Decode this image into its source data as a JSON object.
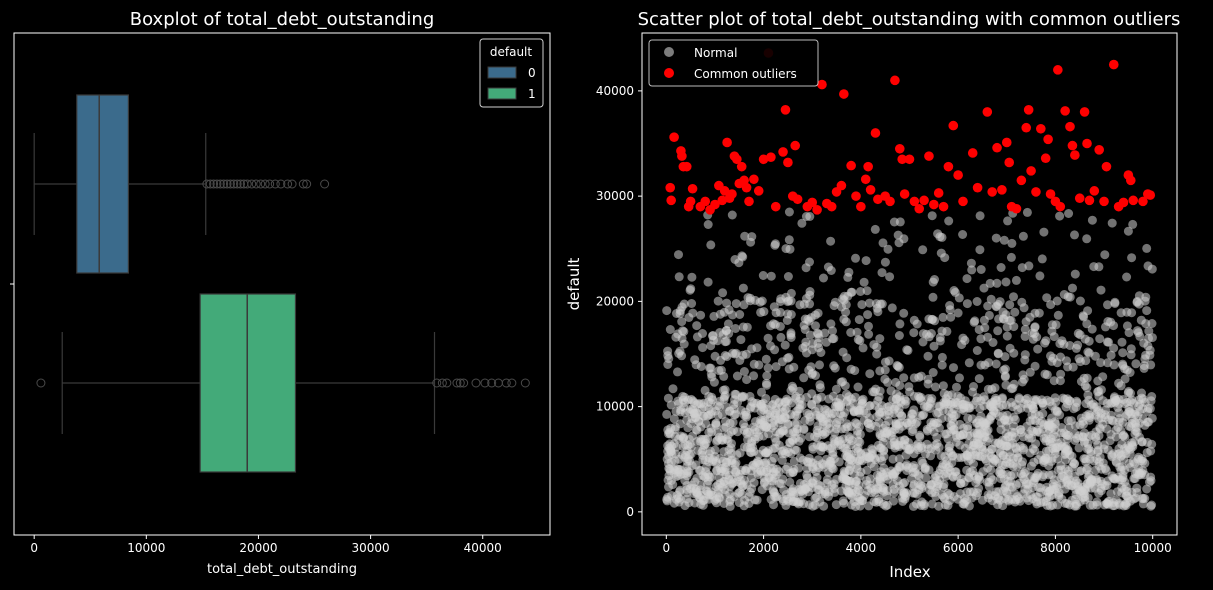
{
  "colors": {
    "background": "#000000",
    "axes": "#ffffff",
    "box0": "#3b6b8c",
    "box1": "#43aa79",
    "normal": "#cfcfcf",
    "outlier": "#ff0000",
    "whisker": "#3a3a3a"
  },
  "chart_data": [
    {
      "type": "boxplot",
      "title": "Boxplot of total_debt_outstanding",
      "xlabel": "total_debt_outstanding",
      "ylabel": "",
      "xlim": [
        -1800,
        46000
      ],
      "xticks": [
        "0",
        "10000",
        "20000",
        "30000",
        "40000"
      ],
      "xtick_values": [
        0,
        10000,
        20000,
        30000,
        40000
      ],
      "legend": {
        "title": "default",
        "position": "top-right",
        "entries": [
          "0",
          "1"
        ]
      },
      "groups": [
        {
          "name": "0",
          "min": 0,
          "q1": 3800,
          "median": 5800,
          "q3": 8400,
          "max": 15300,
          "outliers": [
            15400,
            15700,
            16000,
            16300,
            16600,
            16900,
            17200,
            17500,
            17800,
            18100,
            18400,
            18700,
            19000,
            19400,
            19800,
            20200,
            20600,
            21000,
            21500,
            22000,
            22600,
            23000,
            24000,
            24300,
            25900
          ]
        },
        {
          "name": "1",
          "min": 2500,
          "q1": 14800,
          "median": 19000,
          "q3": 23300,
          "max": 35700,
          "outliers": [
            600,
            35900,
            36400,
            36800,
            37700,
            38000,
            38300,
            39400,
            40200,
            40800,
            41400,
            42100,
            42600,
            43800
          ]
        }
      ]
    },
    {
      "type": "scatter",
      "title": "Scatter plot of total_debt_outstanding with common outliers",
      "xlabel": "Index",
      "ylabel": "default",
      "xlim": [
        -500,
        10500
      ],
      "ylim": [
        -2200,
        45500
      ],
      "xticks": [
        "0",
        "2000",
        "4000",
        "6000",
        "8000",
        "10000"
      ],
      "xtick_values": [
        0,
        2000,
        4000,
        6000,
        8000,
        10000
      ],
      "yticks": [
        "0",
        "10000",
        "20000",
        "30000",
        "40000"
      ],
      "ytick_values": [
        0,
        10000,
        20000,
        30000,
        40000
      ],
      "legend": {
        "position": "top-left",
        "entries": [
          "Normal",
          "Common outliers"
        ]
      },
      "series": [
        {
          "name": "Normal",
          "description_range": {
            "x": [
              0,
              10000
            ],
            "y": [
              0,
              28500
            ]
          }
        },
        {
          "name": "Common outliers",
          "points": [
            [
              80,
              30800
            ],
            [
              100,
              29600
            ],
            [
              160,
              35600
            ],
            [
              300,
              34300
            ],
            [
              320,
              33800
            ],
            [
              350,
              32800
            ],
            [
              420,
              32800
            ],
            [
              460,
              29000
            ],
            [
              500,
              29500
            ],
            [
              540,
              30700
            ],
            [
              700,
              29000
            ],
            [
              800,
              29500
            ],
            [
              900,
              28700
            ],
            [
              1000,
              29200
            ],
            [
              1080,
              31000
            ],
            [
              1150,
              29600
            ],
            [
              1200,
              30500
            ],
            [
              1250,
              35100
            ],
            [
              1300,
              29800
            ],
            [
              1350,
              30200
            ],
            [
              1400,
              33800
            ],
            [
              1450,
              33500
            ],
            [
              1500,
              31200
            ],
            [
              1550,
              32800
            ],
            [
              1600,
              31500
            ],
            [
              1650,
              30800
            ],
            [
              1700,
              29500
            ],
            [
              1800,
              31600
            ],
            [
              1900,
              30500
            ],
            [
              2000,
              33500
            ],
            [
              2100,
              43600
            ],
            [
              2150,
              33700
            ],
            [
              2250,
              29000
            ],
            [
              2400,
              34200
            ],
            [
              2450,
              38200
            ],
            [
              2500,
              33200
            ],
            [
              2600,
              30000
            ],
            [
              2650,
              34800
            ],
            [
              2700,
              29700
            ],
            [
              2900,
              29000
            ],
            [
              3000,
              29400
            ],
            [
              3100,
              28700
            ],
            [
              3200,
              40600
            ],
            [
              3300,
              29300
            ],
            [
              3400,
              29000
            ],
            [
              3500,
              30400
            ],
            [
              3600,
              31000
            ],
            [
              3650,
              39700
            ],
            [
              3800,
              32900
            ],
            [
              3900,
              30000
            ],
            [
              4000,
              29000
            ],
            [
              4100,
              31600
            ],
            [
              4150,
              32800
            ],
            [
              4200,
              30600
            ],
            [
              4300,
              36000
            ],
            [
              4350,
              29700
            ],
            [
              4500,
              30000
            ],
            [
              4600,
              29500
            ],
            [
              4700,
              41000
            ],
            [
              4800,
              34500
            ],
            [
              4850,
              33500
            ],
            [
              4900,
              30200
            ],
            [
              5000,
              33500
            ],
            [
              5100,
              29500
            ],
            [
              5200,
              28800
            ],
            [
              5300,
              29600
            ],
            [
              5400,
              33800
            ],
            [
              5500,
              29200
            ],
            [
              5600,
              30300
            ],
            [
              5700,
              29000
            ],
            [
              5800,
              32800
            ],
            [
              5900,
              36700
            ],
            [
              6000,
              32000
            ],
            [
              6100,
              29500
            ],
            [
              6300,
              34100
            ],
            [
              6400,
              30800
            ],
            [
              6600,
              38000
            ],
            [
              6700,
              30400
            ],
            [
              6800,
              34600
            ],
            [
              6900,
              30600
            ],
            [
              7000,
              35100
            ],
            [
              7050,
              33200
            ],
            [
              7100,
              29000
            ],
            [
              7200,
              28800
            ],
            [
              7300,
              31500
            ],
            [
              7400,
              36500
            ],
            [
              7450,
              38200
            ],
            [
              7500,
              32400
            ],
            [
              7600,
              30400
            ],
            [
              7700,
              36400
            ],
            [
              7800,
              33600
            ],
            [
              7850,
              35400
            ],
            [
              7900,
              30200
            ],
            [
              8000,
              29500
            ],
            [
              8050,
              42000
            ],
            [
              8100,
              29000
            ],
            [
              8200,
              38100
            ],
            [
              8300,
              36600
            ],
            [
              8350,
              34800
            ],
            [
              8400,
              33900
            ],
            [
              8500,
              29800
            ],
            [
              8600,
              38000
            ],
            [
              8650,
              35000
            ],
            [
              8700,
              29600
            ],
            [
              8800,
              30500
            ],
            [
              8900,
              34400
            ],
            [
              9000,
              29500
            ],
            [
              9050,
              32800
            ],
            [
              9200,
              42500
            ],
            [
              9300,
              29000
            ],
            [
              9400,
              29400
            ],
            [
              9500,
              32000
            ],
            [
              9550,
              31500
            ],
            [
              9600,
              29600
            ],
            [
              9800,
              29500
            ],
            [
              9900,
              30200
            ],
            [
              9950,
              30100
            ]
          ]
        }
      ]
    }
  ]
}
